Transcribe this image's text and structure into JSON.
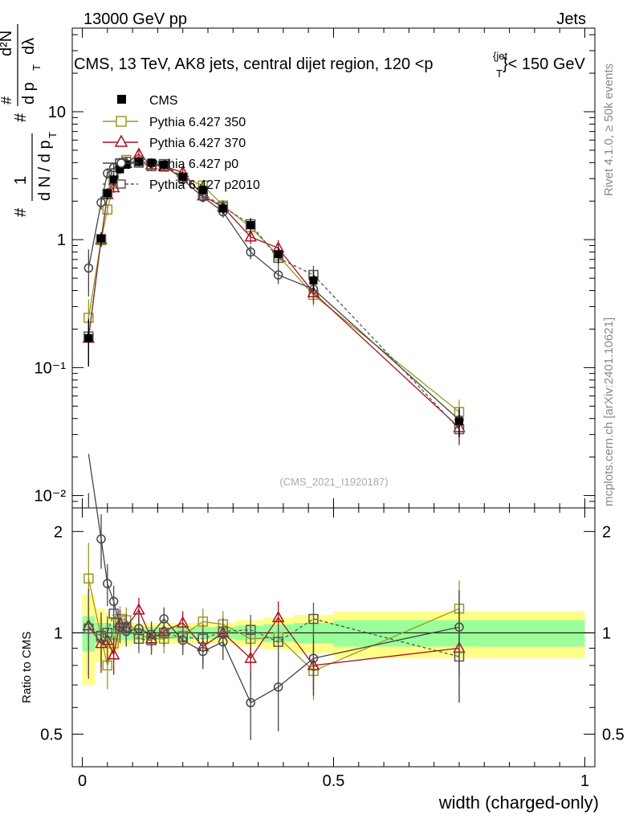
{
  "header": {
    "left": "13000 GeV pp",
    "right": "Jets"
  },
  "title_text": "CMS, 13 TeV, AK8 jets, central dijet region, 120 <p",
  "title_sup": "{jet",
  "title_sub": "T",
  "title_tail": "}< 150 GeV",
  "side_labels": {
    "rivet": "Rivet 4.1.0, ≥ 50k events",
    "mcplots": "mcplots.cern.ch [arXiv:2401.10621]"
  },
  "watermark": "(CMS_2021_I1920187)",
  "ylabel_top": {
    "numer_pre": "#",
    "numer_d2N": "d²N",
    "numer_denom": "d p",
    "numer_sub": "T",
    "numer_dl": "dλ",
    "one": "1",
    "denom": "d N / d p",
    "denom_sub": "T"
  },
  "ylabel_bottom": "Ratio to CMS",
  "xlabel": "width (charged-only)",
  "x_ticks": [
    "0",
    "0.5",
    "1"
  ],
  "y_ticks_top": [
    "10⁻²",
    "10⁻¹",
    "1",
    "10"
  ],
  "y_ticks_bottom": [
    "0.5",
    "1",
    "2"
  ],
  "chart_data": {
    "type": "line",
    "title": "CMS, 13 TeV, AK8 jets, central dijet region, 120 <pT{jet}< 150 GeV",
    "xlabel": "width (charged-only)",
    "ylabel": "1/dN/dpT · d2N/dpTdλ",
    "ratio_ylabel": "Ratio to CMS",
    "xlim": [
      -0.02,
      1.02
    ],
    "ylim": [
      0.008,
      45
    ],
    "ylog": true,
    "ratio_ylim": [
      0.4,
      2.35
    ],
    "ratio_ylog": true,
    "x": [
      0.0125,
      0.0375,
      0.05,
      0.0625,
      0.075,
      0.0875,
      0.1125,
      0.1375,
      0.1625,
      0.2,
      0.24,
      0.28,
      0.335,
      0.39,
      0.46,
      0.75
    ],
    "bin_edges": [
      0,
      0.025,
      0.045,
      0.055,
      0.07,
      0.08,
      0.1,
      0.125,
      0.15,
      0.175,
      0.225,
      0.255,
      0.305,
      0.36,
      0.42,
      0.5,
      1.0
    ],
    "band_bins": [
      [
        0.0,
        0.025
      ],
      [
        0.025,
        0.045
      ],
      [
        0.045,
        0.055
      ],
      [
        0.055,
        0.07
      ],
      [
        0.07,
        0.08
      ],
      [
        0.08,
        0.1
      ],
      [
        0.1,
        0.125
      ],
      [
        0.125,
        0.15
      ],
      [
        0.15,
        0.175
      ],
      [
        0.175,
        0.225
      ],
      [
        0.225,
        0.255
      ],
      [
        0.255,
        0.305
      ],
      [
        0.305,
        0.36
      ],
      [
        0.36,
        0.42
      ],
      [
        0.42,
        0.5
      ],
      [
        0.5,
        1.0
      ]
    ],
    "band_inner": [
      0.12,
      0.07,
      0.07,
      0.06,
      0.05,
      0.05,
      0.04,
      0.04,
      0.04,
      0.04,
      0.04,
      0.04,
      0.05,
      0.06,
      0.07,
      0.09
    ],
    "band_outer": [
      0.3,
      0.18,
      0.15,
      0.12,
      0.09,
      0.08,
      0.07,
      0.07,
      0.07,
      0.07,
      0.07,
      0.07,
      0.09,
      0.11,
      0.13,
      0.16
    ],
    "series": [
      {
        "name": "CMS",
        "color": "#000000",
        "marker": "square-filled",
        "dashed": false,
        "values": [
          0.17,
          1.02,
          2.3,
          2.95,
          3.55,
          3.85,
          4.05,
          4.0,
          3.85,
          3.1,
          2.45,
          1.75,
          1.3,
          0.77,
          0.48,
          0.038
        ],
        "ratio": [
          1.0,
          1.0,
          1.0,
          1.0,
          1.0,
          1.0,
          1.0,
          1.0,
          1.0,
          1.0,
          1.0,
          1.0,
          1.0,
          1.0,
          1.0,
          1.0
        ],
        "ratio_err": [
          0.0,
          0.0,
          0.0,
          0.0,
          0.0,
          0.0,
          0.0,
          0.0,
          0.0,
          0.0,
          0.0,
          0.0,
          0.0,
          0.0,
          0.0,
          0.0
        ]
      },
      {
        "name": "Pythia 6.427 350",
        "color": "#999922",
        "marker": "square-open",
        "dashed": false,
        "values": [
          0.245,
          0.99,
          1.72,
          2.75,
          3.9,
          4.2,
          4.0,
          3.85,
          3.7,
          3.05,
          2.65,
          1.85,
          1.25,
          0.75,
          0.37,
          0.045
        ],
        "ratio": [
          1.45,
          0.97,
          0.8,
          0.93,
          1.1,
          1.09,
          0.99,
          0.96,
          0.96,
          0.98,
          1.08,
          1.06,
          0.96,
          0.97,
          0.77,
          1.18
        ],
        "ratio_err": [
          0.4,
          0.18,
          0.12,
          0.11,
          0.1,
          0.1,
          0.09,
          0.09,
          0.09,
          0.09,
          0.1,
          0.1,
          0.11,
          0.12,
          0.14,
          0.25
        ]
      },
      {
        "name": "Pythia 6.427 370",
        "color": "#aa1122",
        "marker": "triangle-open",
        "dashed": false,
        "values": [
          0.17,
          1.0,
          2.25,
          2.55,
          3.9,
          3.95,
          4.65,
          3.85,
          3.75,
          3.35,
          2.2,
          1.8,
          1.05,
          0.86,
          0.385,
          0.034
        ],
        "ratio": [
          1.05,
          0.93,
          0.95,
          0.86,
          1.07,
          1.04,
          1.17,
          0.96,
          1.01,
          1.07,
          0.91,
          1.0,
          0.84,
          1.11,
          0.8,
          0.9
        ],
        "ratio_err": [
          0.3,
          0.17,
          0.13,
          0.11,
          0.1,
          0.1,
          0.1,
          0.09,
          0.09,
          0.09,
          0.1,
          0.1,
          0.12,
          0.13,
          0.15,
          0.28
        ]
      },
      {
        "name": "Pythia 6.427 p0",
        "color": "#444444",
        "marker": "circle-open",
        "dashed": false,
        "values": [
          0.6,
          1.95,
          3.3,
          3.65,
          3.75,
          3.9,
          4.1,
          3.95,
          3.85,
          2.95,
          2.15,
          1.65,
          0.8,
          0.53,
          0.41,
          0.039
        ],
        "ratio": [
          3.4,
          1.9,
          1.4,
          1.24,
          1.04,
          1.01,
          1.03,
          0.99,
          1.1,
          0.95,
          0.88,
          0.94,
          0.62,
          0.69,
          0.84,
          1.04
        ],
        "ratio_err": [
          0.8,
          0.35,
          0.2,
          0.14,
          0.1,
          0.1,
          0.1,
          0.09,
          0.09,
          0.09,
          0.1,
          0.11,
          0.14,
          0.18,
          0.16,
          0.3
        ]
      },
      {
        "name": "Pythia 6.427 p2010",
        "color": "#555555",
        "marker": "square-open",
        "dashed": true,
        "values": [
          0.175,
          1.01,
          2.28,
          3.3,
          3.95,
          4.05,
          4.0,
          3.75,
          3.9,
          3.05,
          2.3,
          1.8,
          1.32,
          0.72,
          0.53,
          0.033
        ],
        "ratio": [
          1.03,
          0.98,
          1.0,
          1.14,
          1.03,
          1.04,
          0.96,
          0.95,
          1.0,
          0.97,
          0.96,
          1.01,
          1.02,
          0.94,
          1.1,
          0.85
        ],
        "ratio_err": [
          0.3,
          0.17,
          0.12,
          0.12,
          0.1,
          0.1,
          0.09,
          0.09,
          0.09,
          0.09,
          0.1,
          0.1,
          0.11,
          0.12,
          0.13,
          0.22
        ]
      }
    ]
  }
}
